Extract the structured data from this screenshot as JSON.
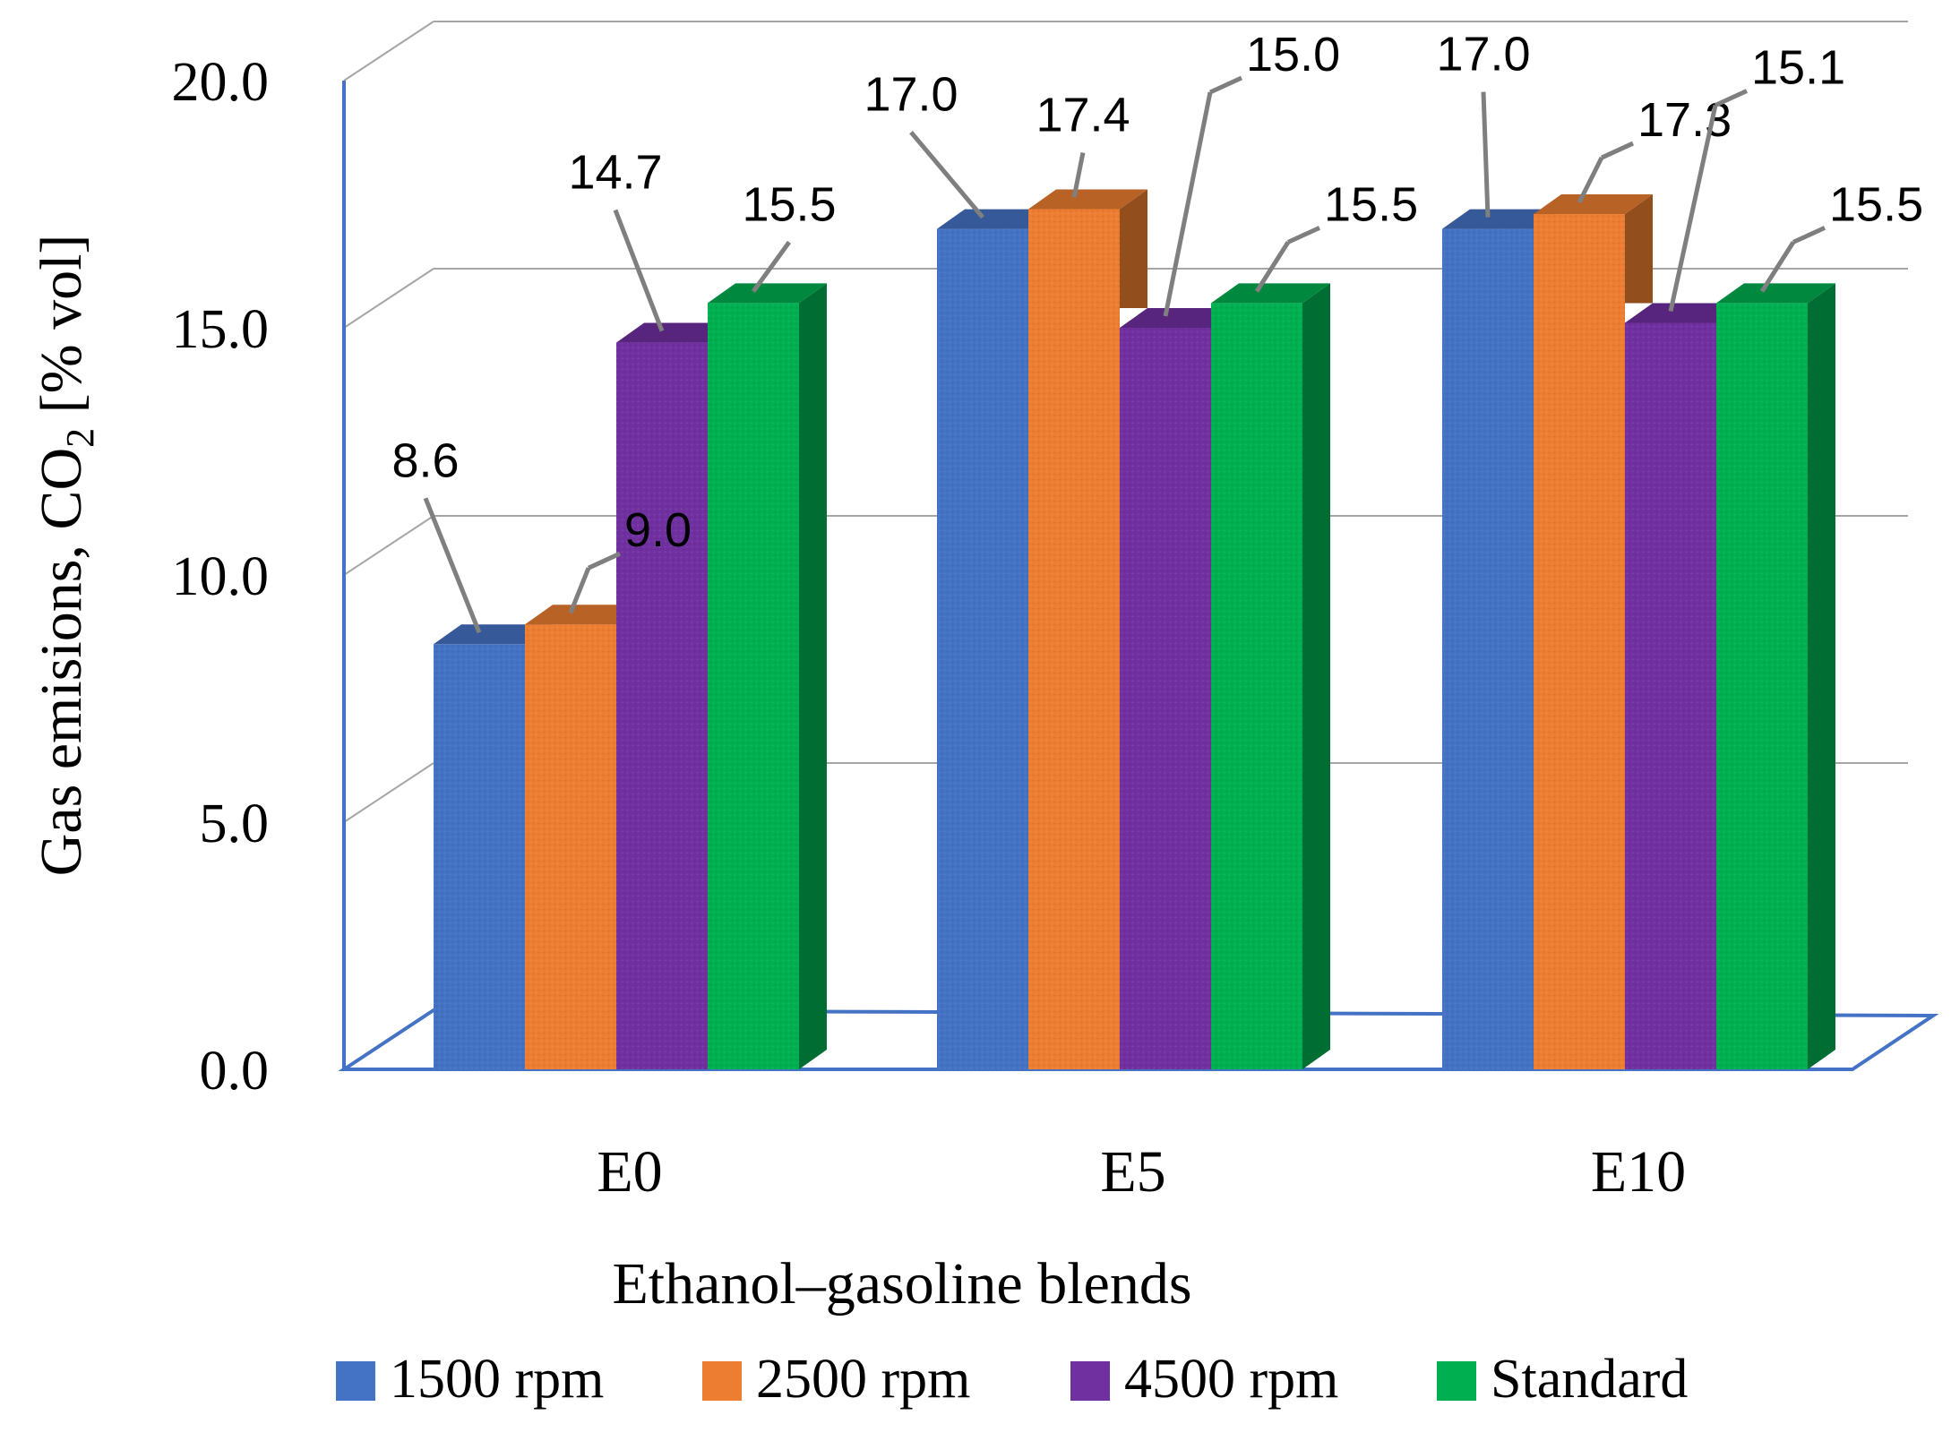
{
  "chart_data": {
    "type": "bar",
    "title": "",
    "xlabel": "Ethanol–gasoline  blends",
    "ylabel": {
      "prefix": "Gas emisions,  CO",
      "subscript": "2",
      "suffix": " [% vol]"
    },
    "categories": [
      "E0",
      "E5",
      "E10"
    ],
    "ylim": [
      0,
      20
    ],
    "yticks": [
      "0.0",
      "5.0",
      "10.0",
      "15.0",
      "20.0"
    ],
    "grid": true,
    "legend_position": "bottom",
    "series": [
      {
        "name": "1500 rpm",
        "values": [
          8.6,
          17.0,
          17.0
        ],
        "labels": [
          "8.6",
          "17.0",
          "17.0"
        ],
        "color": "#4472c4"
      },
      {
        "name": "2500 rpm",
        "values": [
          9.0,
          17.4,
          17.3
        ],
        "labels": [
          "9.0",
          "17.4",
          "17.3"
        ],
        "color": "#ed7d31"
      },
      {
        "name": "4500 rpm",
        "values": [
          14.7,
          15.0,
          15.1
        ],
        "labels": [
          "14.7",
          "15.0",
          "15.1"
        ],
        "color": "#7030a0"
      },
      {
        "name": "Standard",
        "values": [
          15.5,
          15.5,
          15.5
        ],
        "labels": [
          "15.5",
          "15.5",
          "15.5"
        ],
        "color": "#00b050"
      }
    ]
  }
}
